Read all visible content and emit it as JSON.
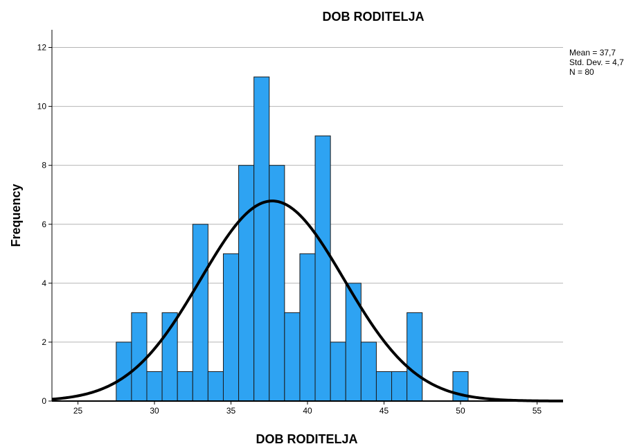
{
  "chart_data": {
    "type": "bar",
    "title": "DOB RODITELJA",
    "xlabel": "DOB RODITELJA",
    "ylabel": "Frequency",
    "xlim": [
      23.3,
      56.7
    ],
    "ylim": [
      0,
      12.6
    ],
    "x_ticks": [
      25,
      30,
      35,
      40,
      45,
      50,
      55
    ],
    "y_ticks": [
      0,
      2,
      4,
      6,
      8,
      10,
      12
    ],
    "grid": true,
    "bin_width": 1,
    "bins": [
      {
        "x": 28,
        "value": 2
      },
      {
        "x": 29,
        "value": 3
      },
      {
        "x": 30,
        "value": 1
      },
      {
        "x": 31,
        "value": 3
      },
      {
        "x": 32,
        "value": 1
      },
      {
        "x": 33,
        "value": 6
      },
      {
        "x": 34,
        "value": 1
      },
      {
        "x": 35,
        "value": 5
      },
      {
        "x": 36,
        "value": 8
      },
      {
        "x": 37,
        "value": 11
      },
      {
        "x": 38,
        "value": 8
      },
      {
        "x": 39,
        "value": 3
      },
      {
        "x": 40,
        "value": 5
      },
      {
        "x": 41,
        "value": 9
      },
      {
        "x": 42,
        "value": 2
      },
      {
        "x": 43,
        "value": 4
      },
      {
        "x": 44,
        "value": 2
      },
      {
        "x": 45,
        "value": 1
      },
      {
        "x": 46,
        "value": 1
      },
      {
        "x": 47,
        "value": 3
      },
      {
        "x": 50,
        "value": 1
      }
    ],
    "normal_curve": {
      "mean": 37.7,
      "sd": 4.7,
      "n": 80
    },
    "stats": {
      "mean": "Mean = 37,7",
      "std": "Std. Dev. =  4,7",
      "n": "N = 80"
    },
    "colors": {
      "bar": "#2ea3f2",
      "bar_stroke": "#1a1a1a",
      "curve": "#000000",
      "grid": "#b4b4b4"
    }
  }
}
